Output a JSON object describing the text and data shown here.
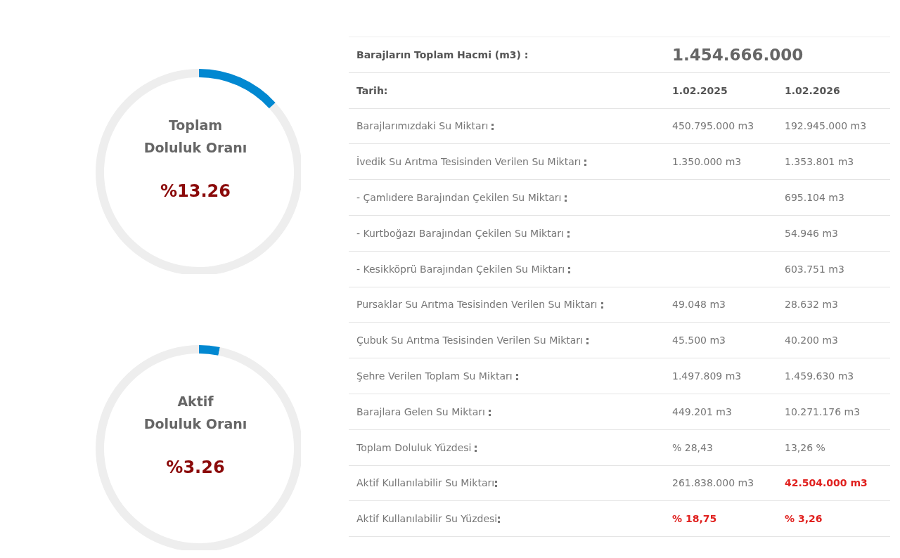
{
  "chart_data": [
    {
      "type": "donut",
      "title": "Toplam Doluluk Oranı",
      "categories": [
        null,
        null
      ],
      "values": [
        13.26,
        86.74
      ],
      "colors": [
        "#0288d1",
        "#eeeeee"
      ],
      "annotations": [
        "%13.26"
      ]
    },
    {
      "type": "donut",
      "title": "Aktif Doluluk Oranı",
      "categories": [
        null,
        null
      ],
      "values": [
        3.26,
        96.74
      ],
      "colors": [
        "#0288d1",
        "#eeeeee"
      ],
      "annotations": [
        "%3.26"
      ]
    },
    {
      "type": "other",
      "title": "Barajların Toplam Hacmi (m3) :",
      "subtitle": "1.454.666.000",
      "xlabel": "Tarih:",
      "categories": [
        "Barajlarımızdaki Su Miktarı",
        "İvedik Su Arıtma Tesisinden Verilen Su Miktarı",
        "- Çamlıdere Barajından Çekilen Su Miktarı",
        "- Kurtboğazı Barajından Çekilen Su Miktarı",
        "- Kesikköprü Barajından Çekilen Su Miktarı",
        "Pursaklar Su Arıtma Tesisinden Verilen Su Miktarı",
        "Çubuk Su Arıtma Tesisinden Verilen Su Miktarı",
        "Şehre Verilen Toplam Su Miktarı",
        "Barajlara Gelen Su Miktarı",
        "Toplam Doluluk Yüzdesi",
        "Aktif Kullanılabilir Su Miktarı",
        "Aktif Kullanılabilir Su Yüzdesi"
      ],
      "series": [
        {
          "name": "1.02.2025",
          "color": "#777777",
          "values": [
            450795000,
            1350000,
            null,
            null,
            null,
            49048,
            45500,
            1497809,
            449201,
            28.43,
            261838000,
            18.75
          ],
          "value_labels": [
            "450.795.000 m3",
            "1.350.000 m3",
            null,
            null,
            null,
            "49.048 m3",
            "45.500 m3",
            "1.497.809 m3",
            "449.201 m3",
            "% 28,43",
            "261.838.000 m3",
            "% 18,75"
          ],
          "colors": [
            "#777777",
            "#777777",
            "#777777",
            "#777777",
            "#777777",
            "#777777",
            "#777777",
            "#777777",
            "#777777",
            "#777777",
            "#777777",
            "#e0201e"
          ]
        },
        {
          "name": "1.02.2026",
          "color": "#777777",
          "values": [
            192945000,
            1353801,
            695104,
            54946,
            603751,
            28632,
            40200,
            1459630,
            10271176,
            13.26,
            42504000,
            3.26
          ],
          "value_labels": [
            "192.945.000 m3",
            "1.353.801 m3",
            "695.104 m3",
            "54.946 m3",
            "603.751 m3",
            "28.632 m3",
            "40.200 m3",
            "1.459.630 m3",
            "10.271.176 m3",
            "13,26 %",
            "42.504.000 m3",
            "% 3,26"
          ],
          "colors": [
            "#777777",
            "#777777",
            "#777777",
            "#777777",
            "#777777",
            "#777777",
            "#777777",
            "#777777",
            "#777777",
            "#777777",
            "#e0201e",
            "#e0201e"
          ]
        }
      ]
    }
  ]
}
